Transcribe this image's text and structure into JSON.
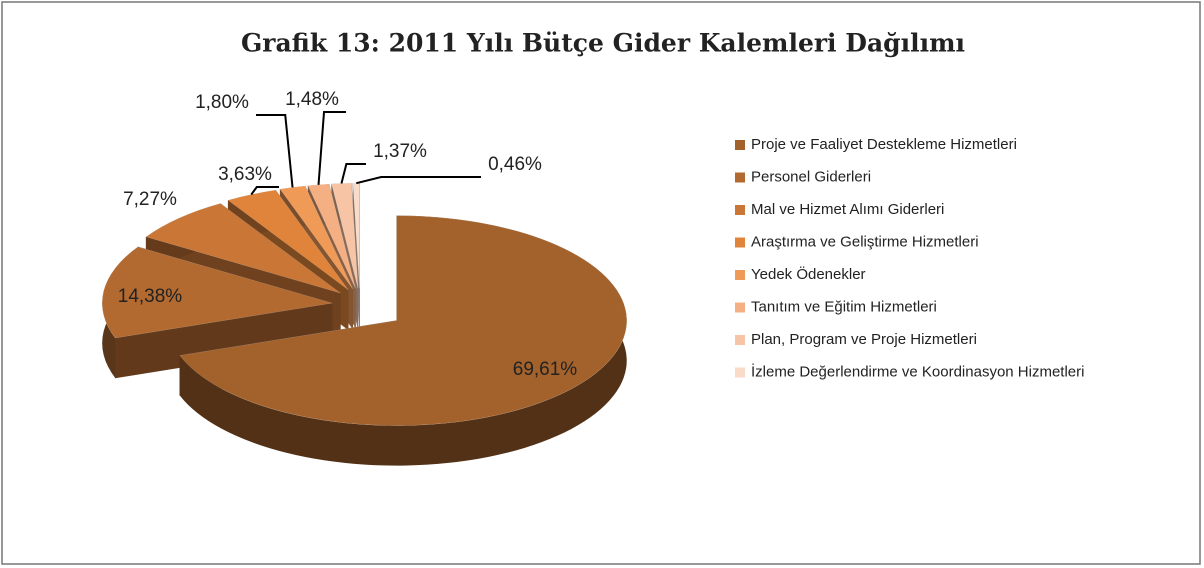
{
  "chart_data": {
    "type": "pie",
    "title": "Grafik 13: 2011 Yılı Bütçe Gider Kalemleri Dağılımı",
    "categories": [
      "Proje ve Faaliyet Destekleme Hizmetleri",
      "Personel Giderleri",
      "Mal ve Hizmet Alımı Giderleri",
      "Araştırma ve Geliştirme Hizmetleri",
      "Yedek Ödenekler",
      "Tanıtım ve Eğitim Hizmetleri",
      "Plan, Program ve Proje Hizmetleri",
      "İzleme Değerlendirme ve Koordinasyon Hizmetleri"
    ],
    "values": [
      69.61,
      14.38,
      7.27,
      3.63,
      1.8,
      1.48,
      1.37,
      0.46
    ],
    "value_labels": [
      "69,61%",
      "14,38%",
      "7,27%",
      "3,63%",
      "1,80%",
      "1,48%",
      "1,37%",
      "0,46%"
    ],
    "colors": [
      "#a3622c",
      "#b26a31",
      "#c97636",
      "#e0843b",
      "#f09a57",
      "#f4b083",
      "#f7c5a6",
      "#fadbc9"
    ],
    "legend": "right"
  }
}
